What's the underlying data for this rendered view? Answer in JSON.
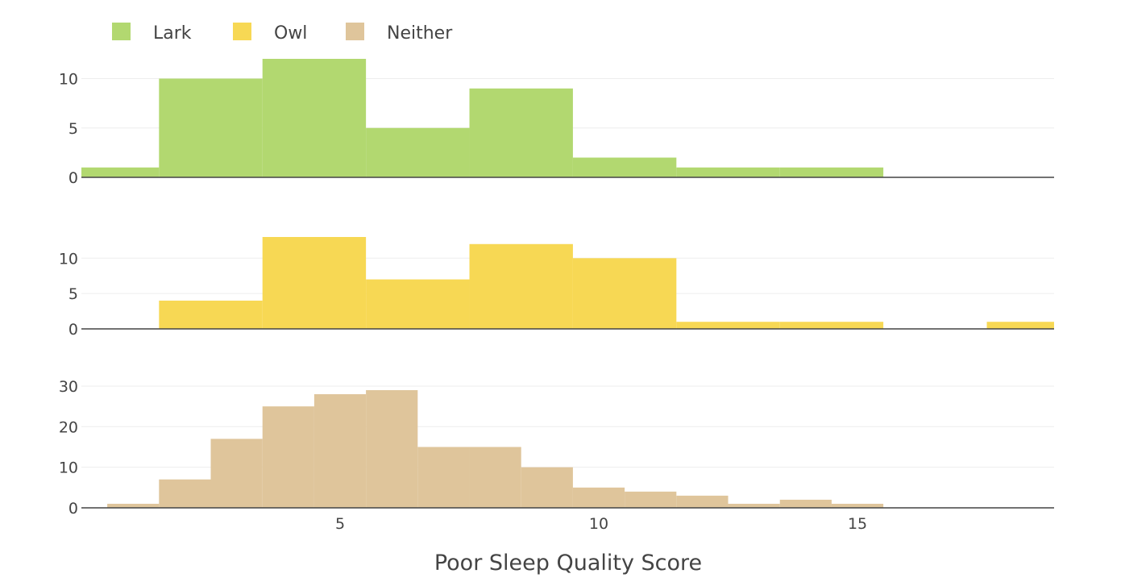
{
  "chart_data": {
    "type": "bar",
    "xlabel": "Poor Sleep Quality Score",
    "x_ticks": [
      5,
      10,
      15
    ],
    "xlim": [
      0,
      18.8
    ],
    "bin_width": 1,
    "grid": true,
    "legend_position": "top-left",
    "panels": [
      {
        "series": "Lark",
        "color": "#b2d870",
        "ylim": [
          0,
          12
        ],
        "y_ticks": [
          0,
          5,
          10
        ],
        "bins": [
          {
            "x0": -0.5,
            "x1": 1.5,
            "value": 1
          },
          {
            "x0": 1.5,
            "x1": 3.5,
            "value": 10
          },
          {
            "x0": 3.5,
            "x1": 5.5,
            "value": 12
          },
          {
            "x0": 5.5,
            "x1": 7.5,
            "value": 5
          },
          {
            "x0": 7.5,
            "x1": 9.5,
            "value": 9
          },
          {
            "x0": 9.5,
            "x1": 11.5,
            "value": 2
          },
          {
            "x0": 11.5,
            "x1": 13.5,
            "value": 1
          },
          {
            "x0": 13.5,
            "x1": 15.5,
            "value": 1
          }
        ]
      },
      {
        "series": "Owl",
        "color": "#f7d854",
        "ylim": [
          0,
          13
        ],
        "y_ticks": [
          0,
          5,
          10
        ],
        "bins": [
          {
            "x0": 1.5,
            "x1": 3.5,
            "value": 4
          },
          {
            "x0": 3.5,
            "x1": 5.5,
            "value": 13
          },
          {
            "x0": 5.5,
            "x1": 7.5,
            "value": 7
          },
          {
            "x0": 7.5,
            "x1": 9.5,
            "value": 12
          },
          {
            "x0": 9.5,
            "x1": 11.5,
            "value": 10
          },
          {
            "x0": 11.5,
            "x1": 13.5,
            "value": 1
          },
          {
            "x0": 13.5,
            "x1": 15.5,
            "value": 1
          },
          {
            "x0": 17.5,
            "x1": 19.5,
            "value": 1
          }
        ]
      },
      {
        "series": "Neither",
        "color": "#dfc59b",
        "ylim": [
          0,
          29
        ],
        "y_ticks": [
          0,
          10,
          20,
          30
        ],
        "bins": [
          {
            "x0": 0.5,
            "x1": 1.5,
            "value": 1
          },
          {
            "x0": 1.5,
            "x1": 2.5,
            "value": 7
          },
          {
            "x0": 2.5,
            "x1": 3.5,
            "value": 17
          },
          {
            "x0": 3.5,
            "x1": 4.5,
            "value": 25
          },
          {
            "x0": 4.5,
            "x1": 5.5,
            "value": 28
          },
          {
            "x0": 5.5,
            "x1": 6.5,
            "value": 29
          },
          {
            "x0": 6.5,
            "x1": 7.5,
            "value": 15
          },
          {
            "x0": 7.5,
            "x1": 8.5,
            "value": 15
          },
          {
            "x0": 8.5,
            "x1": 9.5,
            "value": 10
          },
          {
            "x0": 9.5,
            "x1": 10.5,
            "value": 5
          },
          {
            "x0": 10.5,
            "x1": 11.5,
            "value": 4
          },
          {
            "x0": 11.5,
            "x1": 12.5,
            "value": 3
          },
          {
            "x0": 12.5,
            "x1": 13.5,
            "value": 1
          },
          {
            "x0": 13.5,
            "x1": 14.5,
            "value": 2
          },
          {
            "x0": 14.5,
            "x1": 15.5,
            "value": 1
          }
        ]
      }
    ]
  }
}
